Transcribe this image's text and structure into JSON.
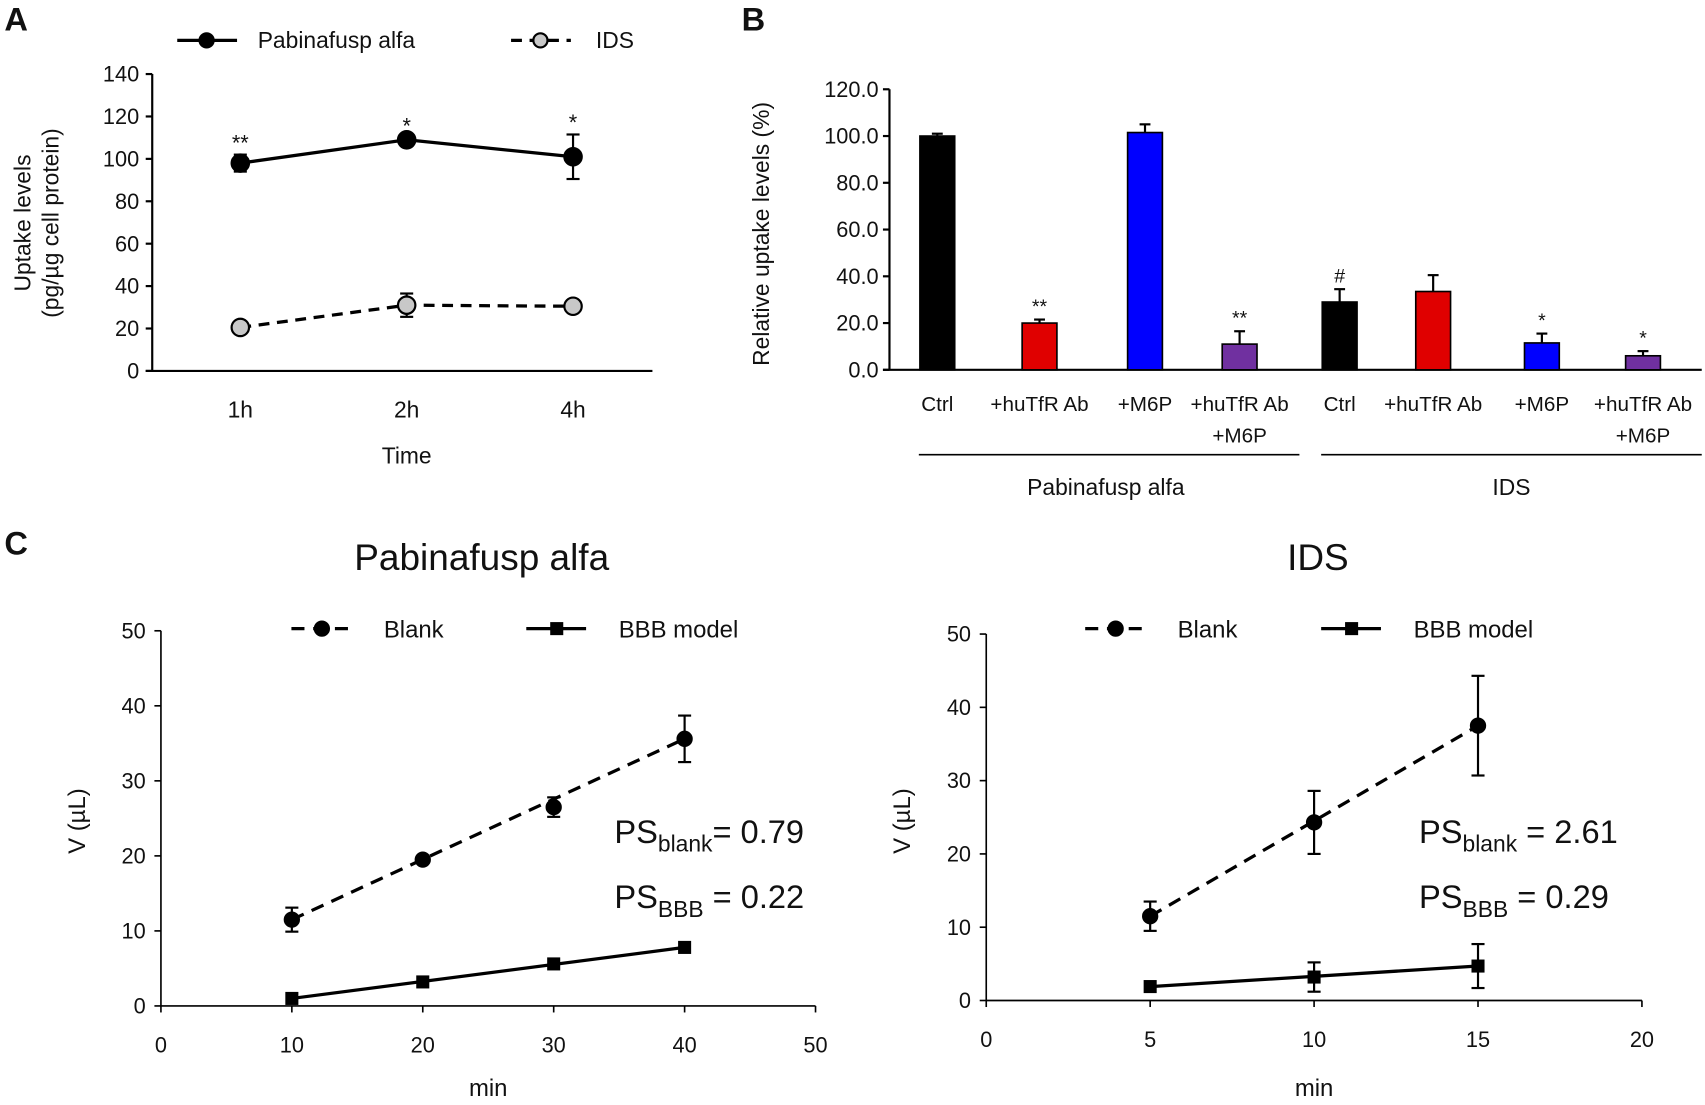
{
  "chart_data": [
    {
      "panel": "A",
      "type": "line",
      "xlabel": "Time",
      "ylabel": [
        "Uptake levels",
        "(pg/µg cell protein)"
      ],
      "categories": [
        "1h",
        "2h",
        "4h"
      ],
      "ylim": [
        0,
        140
      ],
      "yticks": [
        0,
        20,
        40,
        60,
        80,
        100,
        120,
        140
      ],
      "series": [
        {
          "name": "Pabinafusp alfa",
          "style": "solid",
          "marker_color": "#000000",
          "values": [
            98,
            109,
            101
          ],
          "errors": [
            4,
            1,
            10.5
          ],
          "annotations": [
            "**",
            "*",
            "*"
          ]
        },
        {
          "name": "IDS",
          "style": "dashed",
          "marker_color": "#c8c8c8",
          "values": [
            20.5,
            31,
            30.5
          ],
          "errors": [
            0,
            5.5,
            0
          ],
          "annotations": [
            "",
            "",
            ""
          ]
        }
      ]
    },
    {
      "panel": "B",
      "type": "bar",
      "ylabel": "Relative uptake levels (%)",
      "ylim": [
        0,
        120
      ],
      "yticks": [
        "0.0",
        "20.0",
        "40.0",
        "60.0",
        "80.0",
        "100.0",
        "120.0"
      ],
      "categories": [
        [
          "Ctrl"
        ],
        [
          "+huTfR Ab"
        ],
        [
          "+M6P"
        ],
        [
          "+huTfR Ab",
          "+M6P"
        ],
        [
          "Ctrl"
        ],
        [
          "+huTfR Ab"
        ],
        [
          "+M6P"
        ],
        [
          "+huTfR Ab",
          "+M6P"
        ]
      ],
      "values": [
        100,
        20,
        101.5,
        11,
        29,
        33.5,
        11.5,
        6
      ],
      "errors": [
        1,
        1.5,
        3.5,
        5.5,
        5.5,
        7,
        4,
        2
      ],
      "colors": [
        "#000000",
        "#e00000",
        "#0000ff",
        "#7030a0",
        "#000000",
        "#e00000",
        "#0000ff",
        "#7030a0"
      ],
      "annotations": [
        "",
        "**",
        "",
        "**",
        "#",
        "",
        "*",
        "*"
      ],
      "groups": [
        "Pabinafusp alfa",
        "IDS"
      ]
    },
    {
      "panel": "C",
      "type": "line",
      "title": "Pabinafusp alfa",
      "xlabel": "min",
      "ylabel": "V (µL)",
      "xlim": [
        0,
        50
      ],
      "xticks": [
        0,
        10,
        20,
        30,
        40,
        50
      ],
      "ylim": [
        0,
        50
      ],
      "yticks": [
        0,
        10,
        20,
        30,
        40,
        50
      ],
      "series": [
        {
          "name": "Blank",
          "style": "dashed",
          "marker": "circle",
          "x": [
            10,
            20,
            30,
            40
          ],
          "y": [
            11.5,
            19.5,
            26.5,
            35.6
          ],
          "errors": [
            1.6,
            0.4,
            1.3,
            3.1
          ]
        },
        {
          "name": "BBB model",
          "style": "solid",
          "marker": "square",
          "x": [
            10,
            20,
            30,
            40
          ],
          "y": [
            1,
            3.2,
            5.6,
            7.8
          ],
          "errors": [
            0,
            0,
            0,
            0
          ]
        }
      ],
      "annotations": [
        {
          "label": "PS",
          "sub": "blank",
          "value": "= 0.79"
        },
        {
          "label": "PS",
          "sub": "BBB",
          "value": " = 0.22"
        }
      ]
    },
    {
      "panel": "C",
      "type": "line",
      "title": "IDS",
      "xlabel": "min",
      "ylabel": "V (µL)",
      "xlim": [
        0,
        20
      ],
      "xticks": [
        0,
        5,
        10,
        15,
        20
      ],
      "ylim": [
        0,
        50
      ],
      "yticks": [
        0,
        10,
        20,
        30,
        40,
        50
      ],
      "series": [
        {
          "name": "Blank",
          "style": "dashed",
          "marker": "circle",
          "x": [
            5,
            10,
            15
          ],
          "y": [
            11.5,
            24.3,
            37.5
          ],
          "errors": [
            2,
            4.3,
            6.8
          ]
        },
        {
          "name": "BBB model",
          "style": "solid",
          "marker": "square",
          "x": [
            5,
            10,
            15
          ],
          "y": [
            1.9,
            3.2,
            4.7
          ],
          "errors": [
            0,
            2,
            3
          ]
        }
      ],
      "annotations": [
        {
          "label": "PS",
          "sub": "blank",
          "value": " = 2.61"
        },
        {
          "label": "PS",
          "sub": "BBB",
          "value": " = 0.29"
        }
      ]
    }
  ],
  "panel_letters": [
    "A",
    "B",
    "C"
  ]
}
